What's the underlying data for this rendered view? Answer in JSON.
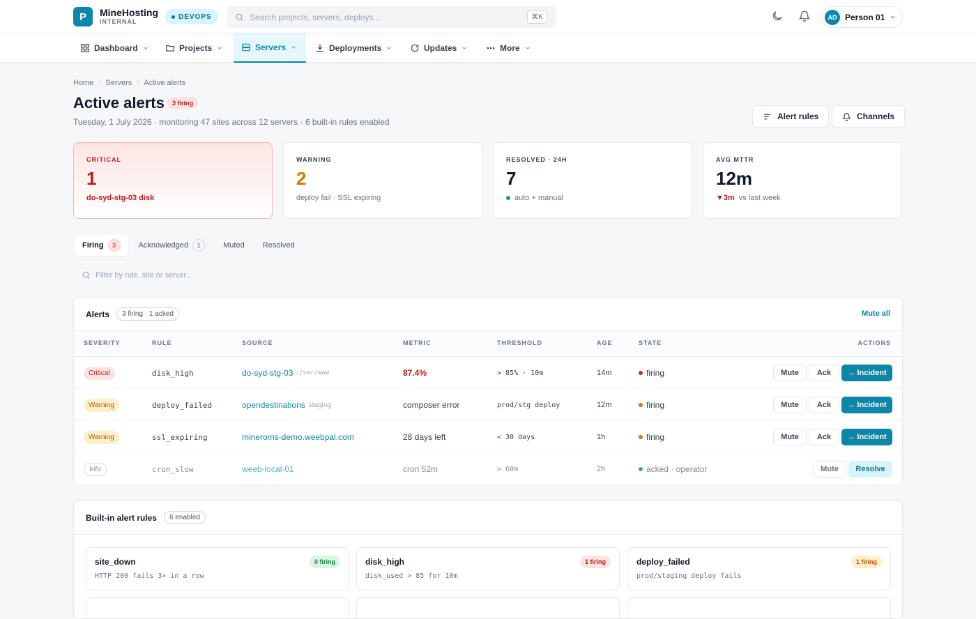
{
  "topbar": {
    "logo_letter": "P",
    "brand_name": "MineHosting",
    "brand_sub": "INTERNAL",
    "env_badge": "DEVOPS",
    "search_placeholder": "Search projects, servers, deploys…",
    "search_shortcut": "⌘K",
    "user_initials": "AD",
    "user_name": "Person 01"
  },
  "nav": [
    {
      "label": "Dashboard",
      "icon": "grid-icon"
    },
    {
      "label": "Projects",
      "icon": "folder-icon"
    },
    {
      "label": "Servers",
      "icon": "server-icon",
      "active": true
    },
    {
      "label": "Deployments",
      "icon": "download-icon"
    },
    {
      "label": "Updates",
      "icon": "refresh-icon"
    },
    {
      "label": "More",
      "icon": "dots-icon"
    }
  ],
  "breadcrumb": [
    "Home",
    "Servers",
    "Active alerts"
  ],
  "header": {
    "title": "Active alerts",
    "firing_badge": "3 firing",
    "subtitle": "Tuesday, 1 July 2026 · monitoring 47 sites across 12 servers · 6 built-in rules enabled",
    "alert_rules_label": "Alert rules",
    "channels_label": "Channels"
  },
  "stats": {
    "critical": {
      "label": "CRITICAL",
      "value": "1",
      "foot": "do-syd-stg-03 disk"
    },
    "warning": {
      "label": "WARNING",
      "value": "2",
      "foot": "deploy fail · SSL expiring"
    },
    "resolved": {
      "label": "RESOLVED · 24H",
      "value": "7",
      "foot": "auto + manual"
    },
    "mttr": {
      "label": "AVG MTTR",
      "value": "12m",
      "delta": "▼3m",
      "foot": "vs last week"
    }
  },
  "tabs": [
    {
      "label": "Firing",
      "count": "3"
    },
    {
      "label": "Acknowledged",
      "count": "1"
    },
    {
      "label": "Muted",
      "count": ""
    },
    {
      "label": "Resolved",
      "count": ""
    }
  ],
  "filter_placeholder": "Filter by rule, site or server…",
  "alerts": {
    "title": "Alerts",
    "summary": "3 firing · 1 acked",
    "mute_all": "Mute all",
    "columns": [
      "SEVERITY",
      "RULE",
      "SOURCE",
      "METRIC",
      "THRESHOLD",
      "AGE",
      "STATE",
      "ACTIONS"
    ],
    "rows": [
      {
        "severity": "Critical",
        "rule": "disk_high",
        "source": "do-syd-stg-03",
        "source_extra": ":/var/www",
        "metric": "87.4%",
        "threshold": "> 85% · 10m",
        "age": "14m",
        "state": "firing",
        "actions": [
          "Mute",
          "Ack",
          "→ Incident"
        ]
      },
      {
        "severity": "Warning",
        "rule": "deploy_failed",
        "source": "opendestinations",
        "source_extra": "staging",
        "metric": "composer error",
        "threshold": "prod/stg deploy",
        "age": "12m",
        "state": "firing",
        "actions": [
          "Mute",
          "Ack",
          "→ Incident"
        ]
      },
      {
        "severity": "Warning",
        "rule": "ssl_expiring",
        "source": "mineroms-demo.weebpal.com",
        "source_extra": "",
        "metric": "28 days left",
        "threshold": "< 30 days",
        "age": "1h",
        "state": "firing",
        "actions": [
          "Mute",
          "Ack",
          "→ Incident"
        ]
      },
      {
        "severity": "Info",
        "rule": "cron_slow",
        "source": "weeb-local-01",
        "source_extra": "",
        "metric": "cron 52m",
        "threshold": "> 60m",
        "age": "2h",
        "state": "acked · operator",
        "actions": [
          "Mute",
          "Resolve"
        ]
      }
    ]
  },
  "rules": {
    "title": "Built-in alert rules",
    "badge": "6 enabled",
    "items": [
      {
        "name": "site_down",
        "desc": "HTTP 200 fails 3× in a row",
        "status": "0 firing"
      },
      {
        "name": "disk_high",
        "desc": "disk_used > 85 for 10m",
        "status": "1 firing"
      },
      {
        "name": "deploy_failed",
        "desc": "prod/staging deploy fails",
        "status": "1 firing"
      }
    ]
  },
  "colors": {
    "accent": "#0e86a8",
    "critical": "#b91c1c",
    "warning": "#d97706",
    "ok": "#16a34a"
  }
}
